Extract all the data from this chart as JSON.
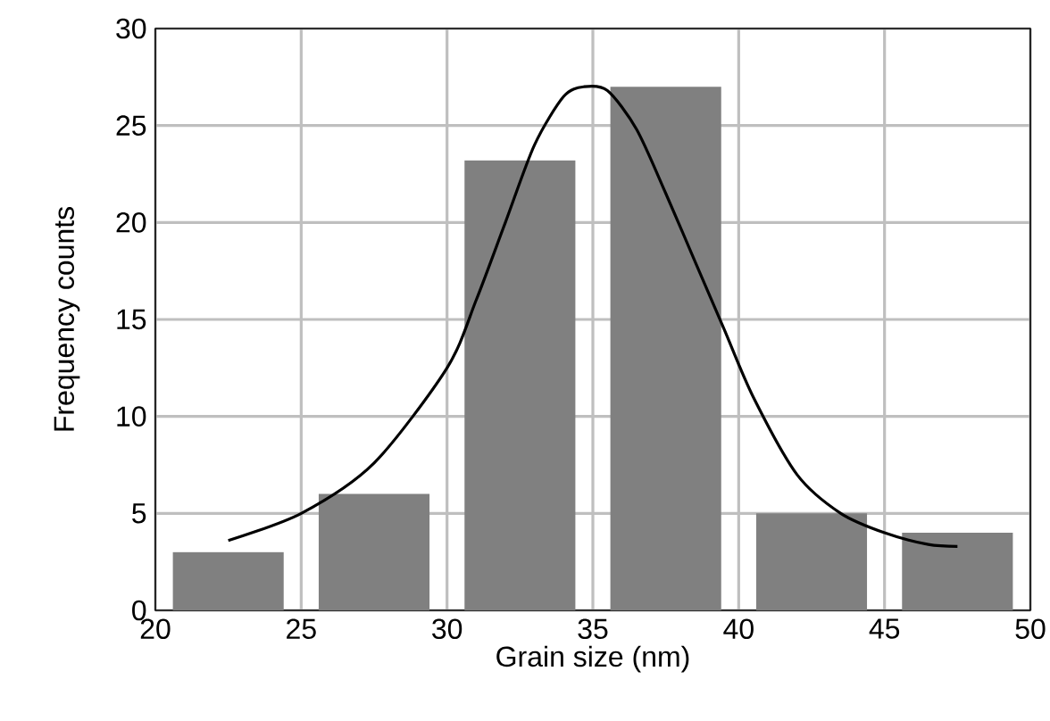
{
  "chart_data": {
    "type": "histogram",
    "xlabel": "Grain size (nm)",
    "ylabel": "Frequency counts",
    "xlim": [
      20,
      50
    ],
    "ylim": [
      0,
      30
    ],
    "xticks": [
      20,
      25,
      30,
      35,
      40,
      45,
      50
    ],
    "yticks": [
      0,
      5,
      10,
      15,
      20,
      25,
      30
    ],
    "grid": true,
    "series": [
      {
        "bins": [
          20,
          25,
          30,
          35,
          40,
          45,
          50
        ],
        "values": [
          3,
          6,
          23.2,
          27,
          5,
          4
        ],
        "color": "#808080"
      },
      {
        "type": "line",
        "color": "#000000",
        "x": [
          22.5,
          25,
          27.5,
          30,
          31,
          32,
          33,
          34,
          34.7,
          35.5,
          36.5,
          37.5,
          38.5,
          39.5,
          40.5,
          42,
          43.5,
          45,
          46.5,
          47.5
        ],
        "values": [
          3.6,
          5,
          7.6,
          12.5,
          16,
          20,
          24,
          26.5,
          27,
          26.8,
          24.8,
          21.5,
          18,
          14.5,
          11,
          7,
          5,
          4,
          3.4,
          3.3
        ]
      }
    ]
  }
}
